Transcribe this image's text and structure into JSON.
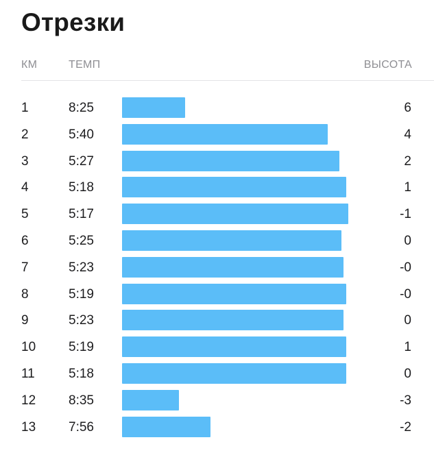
{
  "title": "Отрезки",
  "header": {
    "km": "КМ",
    "pace": "ТЕМП",
    "elevation": "ВЫСОТА"
  },
  "colors": {
    "bar": "#5bbdf8"
  },
  "splits": [
    {
      "km": "1",
      "pace": "8:25",
      "elevation": "6",
      "pace_relative": 0.28
    },
    {
      "km": "2",
      "pace": "5:40",
      "elevation": "4",
      "pace_relative": 0.91
    },
    {
      "km": "3",
      "pace": "5:27",
      "elevation": "2",
      "pace_relative": 0.96
    },
    {
      "km": "4",
      "pace": "5:18",
      "elevation": "1",
      "pace_relative": 0.99
    },
    {
      "km": "5",
      "pace": "5:17",
      "elevation": "-1",
      "pace_relative": 1.0
    },
    {
      "km": "6",
      "pace": "5:25",
      "elevation": "0",
      "pace_relative": 0.97
    },
    {
      "km": "7",
      "pace": "5:23",
      "elevation": "-0",
      "pace_relative": 0.98
    },
    {
      "km": "8",
      "pace": "5:19",
      "elevation": "-0",
      "pace_relative": 0.99
    },
    {
      "km": "9",
      "pace": "5:23",
      "elevation": "0",
      "pace_relative": 0.98
    },
    {
      "km": "10",
      "pace": "5:19",
      "elevation": "1",
      "pace_relative": 0.99
    },
    {
      "km": "11",
      "pace": "5:18",
      "elevation": "0",
      "pace_relative": 0.99
    },
    {
      "km": "12",
      "pace": "8:35",
      "elevation": "-3",
      "pace_relative": 0.25
    },
    {
      "km": "13",
      "pace": "7:56",
      "elevation": "-2",
      "pace_relative": 0.39
    }
  ]
}
